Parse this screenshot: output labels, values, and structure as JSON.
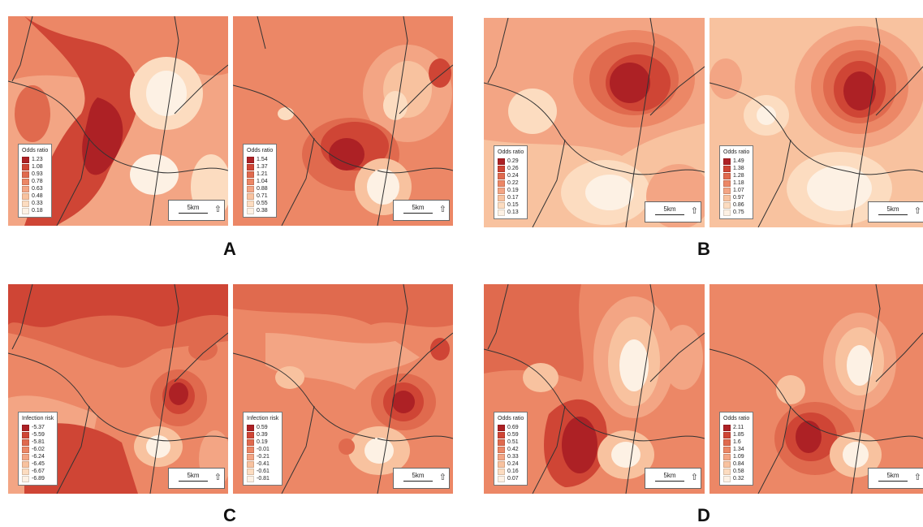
{
  "colors": {
    "c1": "#fdf1e4",
    "c2": "#fcdcc0",
    "c3": "#f8c29f",
    "c4": "#f3a584",
    "c5": "#ec8766",
    "c6": "#e06a4e",
    "c7": "#cf4535",
    "c8": "#ad2125"
  },
  "scale": {
    "label": "5km",
    "north_icon": "north-arrow-icon"
  },
  "panels": [
    {
      "label": "A",
      "maps": [
        {
          "legend_title": "Odds ratio",
          "values": [
            "1.23",
            "1.08",
            "0.93",
            "0.78",
            "0.63",
            "0.48",
            "0.33",
            "0.18"
          ]
        },
        {
          "legend_title": "Odds ratio",
          "values": [
            "1.54",
            "1.37",
            "1.21",
            "1.04",
            "0.88",
            "0.71",
            "0.55",
            "0.38"
          ]
        }
      ]
    },
    {
      "label": "B",
      "maps": [
        {
          "legend_title": "Odds ratio",
          "values": [
            "0.29",
            "0.26",
            "0.24",
            "0.22",
            "0.19",
            "0.17",
            "0.15",
            "0.13"
          ]
        },
        {
          "legend_title": "Odds ratio",
          "values": [
            "1.49",
            "1.38",
            "1.28",
            "1.18",
            "1.07",
            "0.97",
            "0.86",
            "0.75"
          ]
        }
      ]
    },
    {
      "label": "C",
      "maps": [
        {
          "legend_title": "Infection risk",
          "values": [
            "-5.37",
            "-5.59",
            "-5.81",
            "-6.02",
            "-6.24",
            "-6.45",
            "-6.67",
            "-6.89"
          ]
        },
        {
          "legend_title": "Infection risk",
          "values": [
            "0.59",
            "0.39",
            "0.19",
            "-0.01",
            "-0.21",
            "-0.41",
            "-0.61",
            "-0.81"
          ]
        }
      ]
    },
    {
      "label": "D",
      "maps": [
        {
          "legend_title": "Odds ratio",
          "values": [
            "0.69",
            "0.59",
            "0.51",
            "0.42",
            "0.33",
            "0.24",
            "0.16",
            "0.07"
          ]
        },
        {
          "legend_title": "Odds ratio",
          "values": [
            "2.11",
            "1.85",
            "1.6",
            "1.34",
            "1.09",
            "0.84",
            "0.58",
            "0.32"
          ]
        }
      ]
    }
  ]
}
